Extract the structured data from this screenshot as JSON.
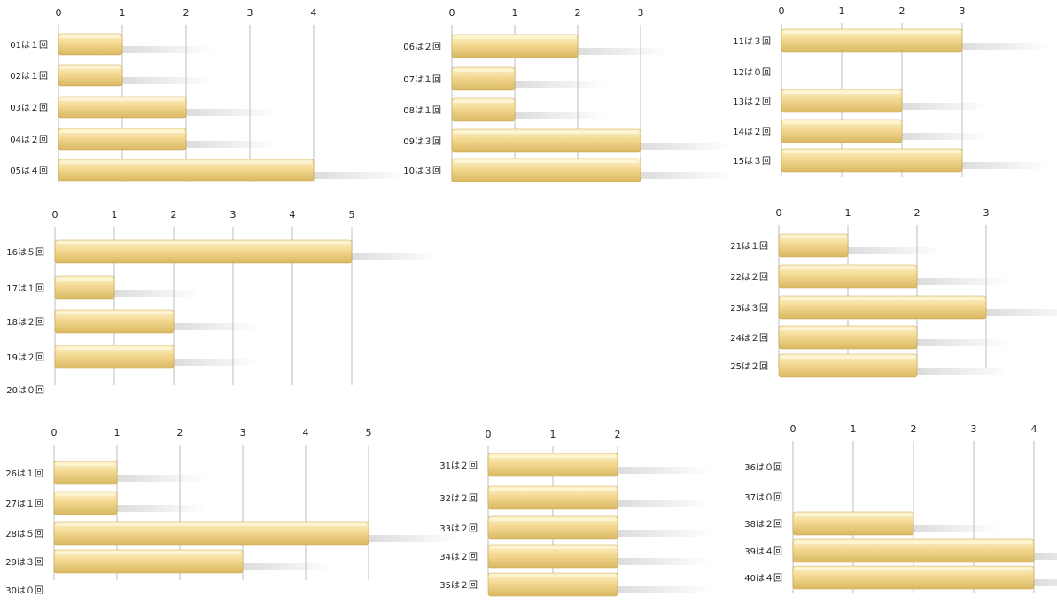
{
  "chart_data": [
    {
      "type": "bar",
      "orientation": "horizontal",
      "categories": [
        "01は１回",
        "02は１回",
        "03は２回",
        "04は２回",
        "05は４回"
      ],
      "values": [
        1,
        1,
        2,
        2,
        4
      ],
      "ticks": [
        0,
        1,
        2,
        3,
        4
      ]
    },
    {
      "type": "bar",
      "orientation": "horizontal",
      "categories": [
        "06は２回",
        "07は１回",
        "08は１回",
        "09は３回",
        "10は３回"
      ],
      "values": [
        2,
        1,
        1,
        3,
        3
      ],
      "ticks": [
        0,
        1,
        2,
        3
      ]
    },
    {
      "type": "bar",
      "orientation": "horizontal",
      "categories": [
        "11は３回",
        "12は０回",
        "13は２回",
        "14は２回",
        "15は３回"
      ],
      "values": [
        3,
        0,
        2,
        2,
        3
      ],
      "ticks": [
        0,
        1,
        2,
        3
      ]
    },
    {
      "type": "bar",
      "orientation": "horizontal",
      "categories": [
        "16は５回",
        "17は１回",
        "18は２回",
        "19は２回",
        "20は０回"
      ],
      "values": [
        5,
        1,
        2,
        2,
        0
      ],
      "ticks": [
        0,
        1,
        2,
        3,
        4,
        5
      ]
    },
    {
      "type": "bar",
      "orientation": "horizontal",
      "categories": [
        "21は１回",
        "22は２回",
        "23は３回",
        "24は２回",
        "25は２回"
      ],
      "values": [
        1,
        2,
        3,
        2,
        2
      ],
      "ticks": [
        0,
        1,
        2,
        3
      ]
    },
    {
      "type": "bar",
      "orientation": "horizontal",
      "categories": [
        "26は１回",
        "27は１回",
        "28は５回",
        "29は３回",
        "30は０回"
      ],
      "values": [
        1,
        1,
        5,
        3,
        0
      ],
      "ticks": [
        0,
        1,
        2,
        3,
        4,
        5
      ]
    },
    {
      "type": "bar",
      "orientation": "horizontal",
      "categories": [
        "31は２回",
        "32は２回",
        "33は２回",
        "34は２回",
        "35は２回"
      ],
      "values": [
        2,
        2,
        2,
        2,
        2
      ],
      "ticks": [
        0,
        1,
        2
      ]
    },
    {
      "type": "bar",
      "orientation": "horizontal",
      "categories": [
        "36は０回",
        "37は０回",
        "38は２回",
        "39は４回",
        "40は４回"
      ],
      "values": [
        0,
        0,
        2,
        4,
        4
      ],
      "ticks": [
        0,
        1,
        2,
        3,
        4
      ]
    }
  ],
  "colors": {
    "bar_top": "#fbeec0",
    "bar_mid": "#f1d58f",
    "bar_bottom": "#d6b55e",
    "grid": "#c9c9c9"
  }
}
